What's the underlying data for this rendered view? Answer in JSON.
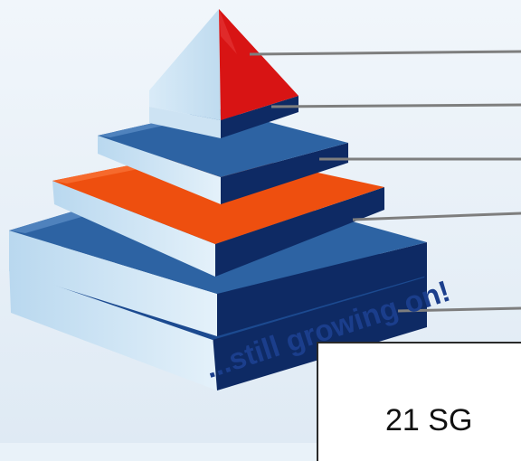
{
  "slogan": "...still growing on!",
  "info_box": {
    "text": "21 SG"
  },
  "colors": {
    "background": "#e9f2f9",
    "tier_blue": "#2d63a3",
    "tier_dark": "#0e2a64",
    "tier_light": "#cde3f3",
    "tier_orange": "#ee4f0f",
    "apex_red": "#d81414",
    "slogan_blue": "#1b3e8c",
    "callout_line": "#7e7e7e"
  }
}
